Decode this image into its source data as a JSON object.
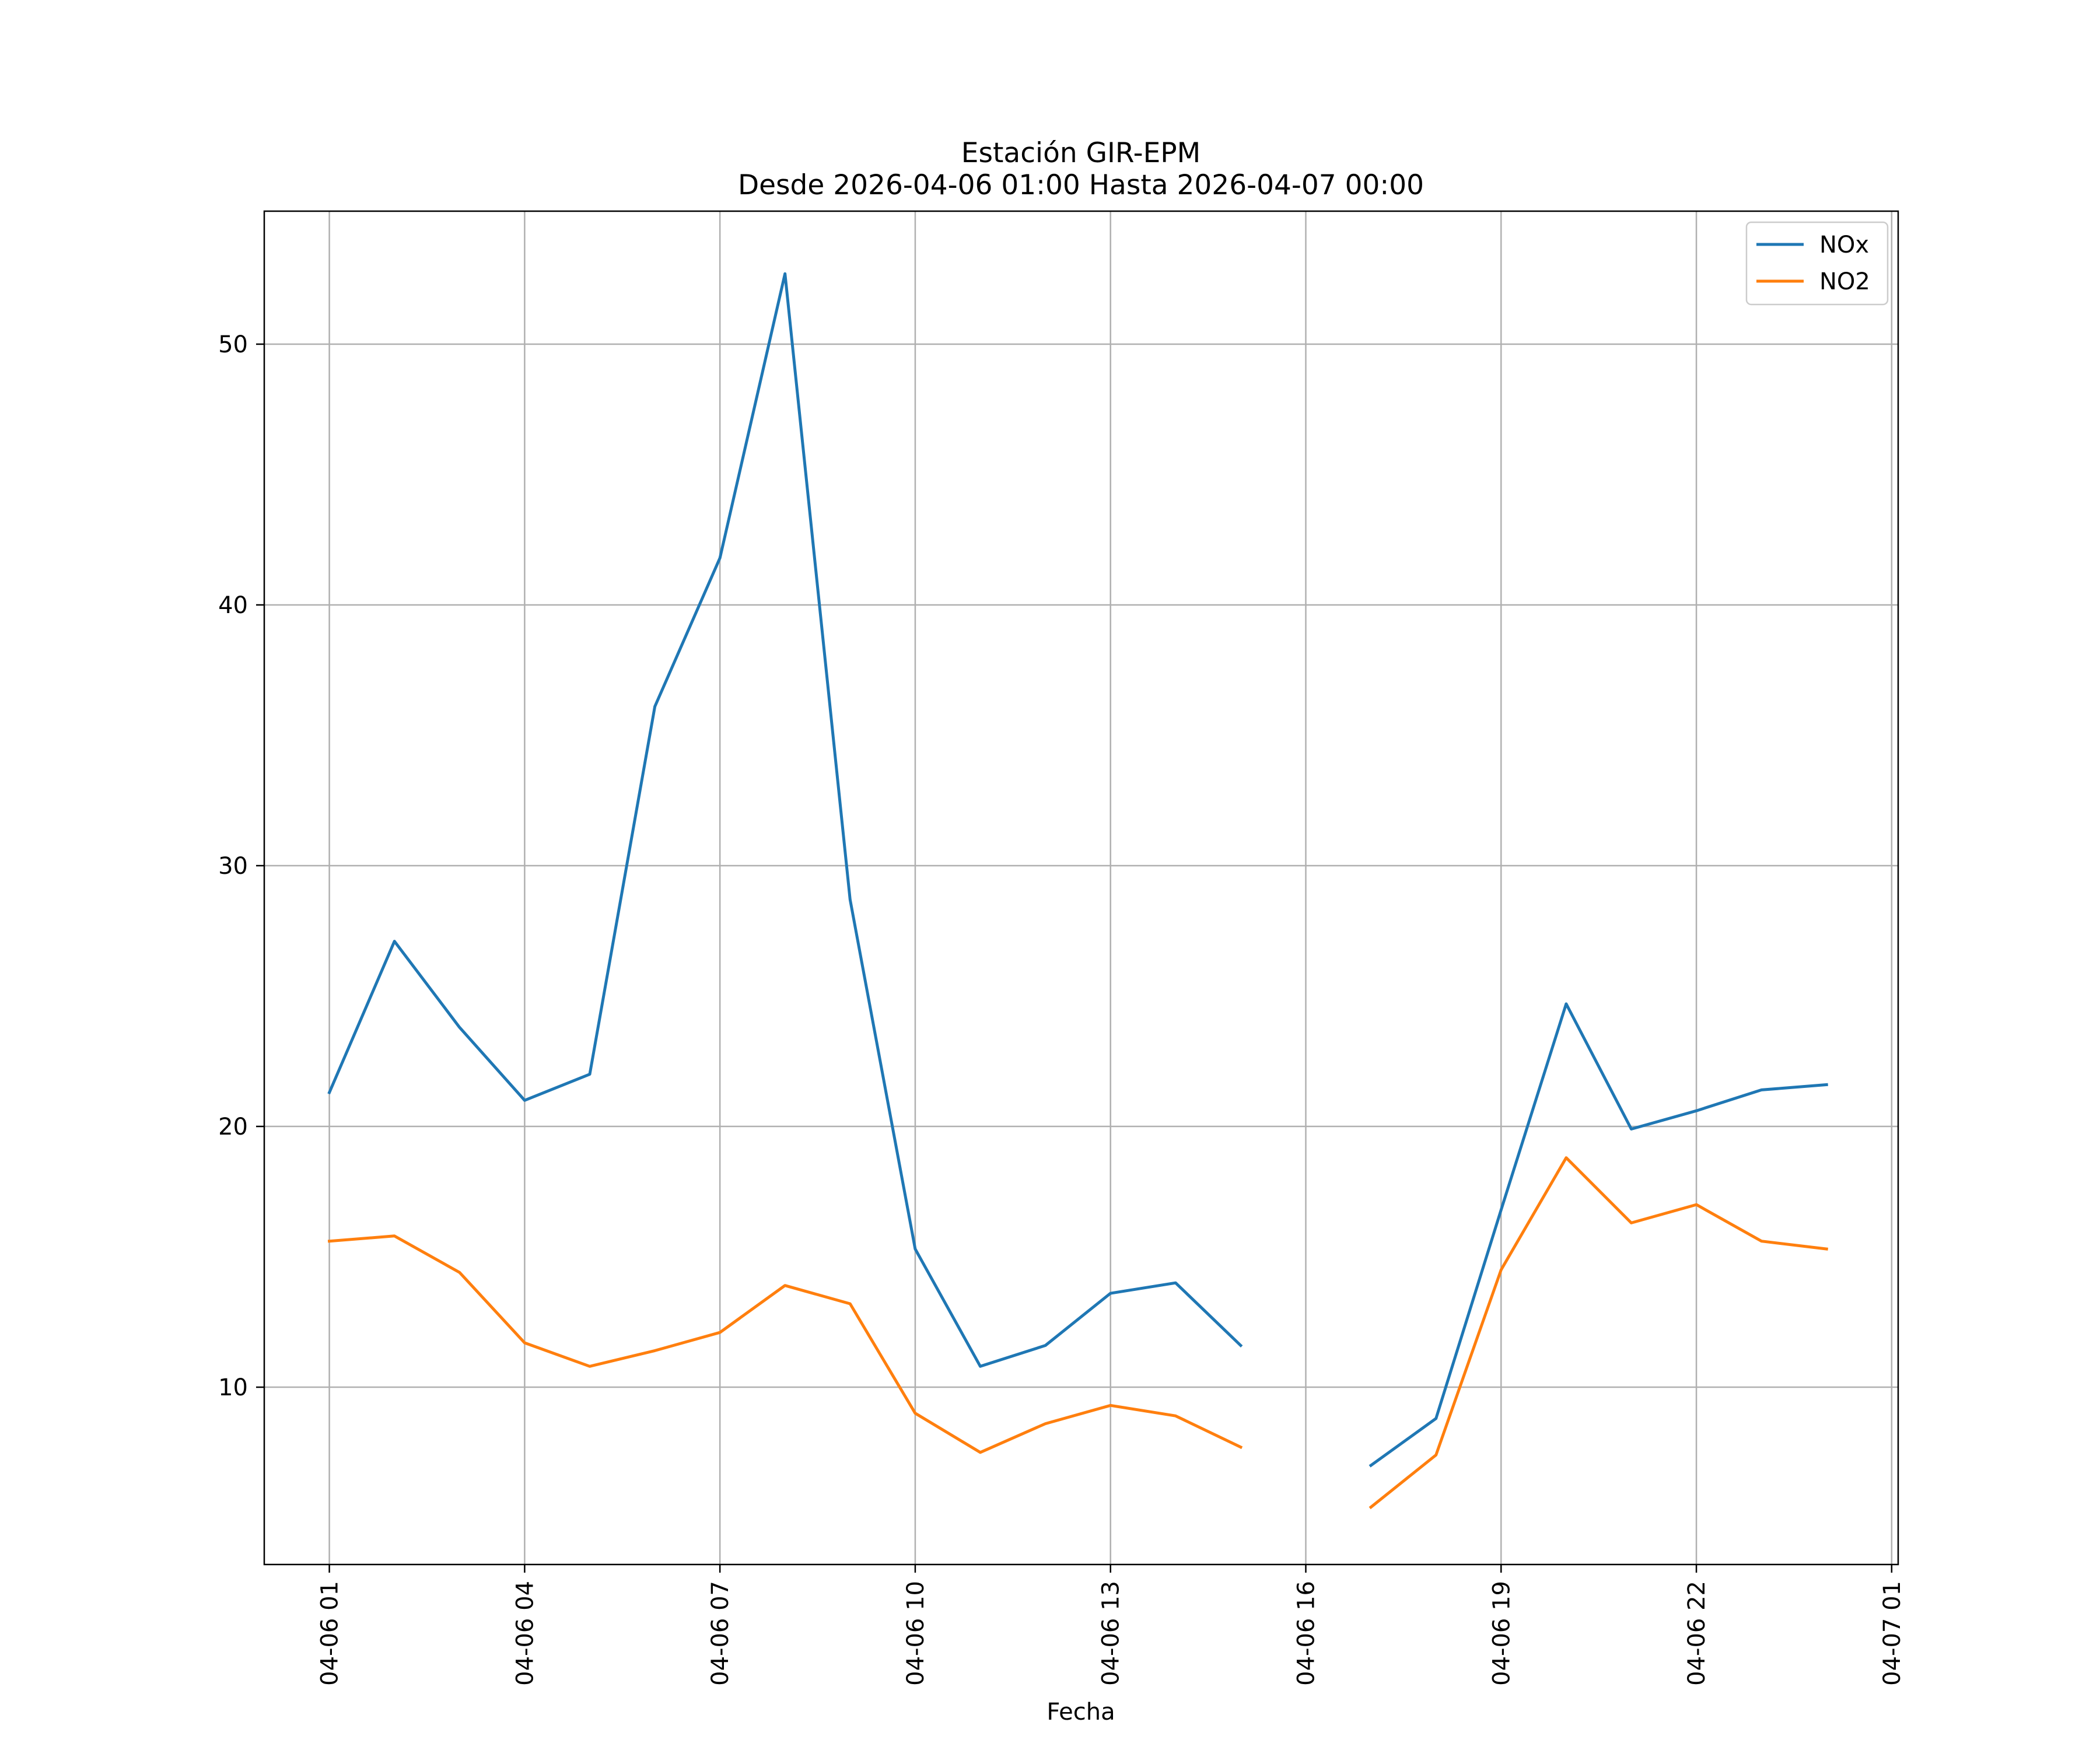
{
  "chart_data": {
    "type": "line",
    "title": "Estación GIR-EPM",
    "subtitle": "Desde 2026-04-06 01:00 Hasta 2026-04-07 00:00",
    "xlabel": "Fecha",
    "ylabel": "",
    "x": [
      "2026-04-06 01:00",
      "2026-04-06 02:00",
      "2026-04-06 03:00",
      "2026-04-06 04:00",
      "2026-04-06 05:00",
      "2026-04-06 06:00",
      "2026-04-06 07:00",
      "2026-04-06 08:00",
      "2026-04-06 09:00",
      "2026-04-06 10:00",
      "2026-04-06 11:00",
      "2026-04-06 12:00",
      "2026-04-06 13:00",
      "2026-04-06 14:00",
      "2026-04-06 15:00",
      "2026-04-06 16:00",
      "2026-04-06 17:00",
      "2026-04-06 18:00",
      "2026-04-06 19:00",
      "2026-04-06 20:00",
      "2026-04-06 21:00",
      "2026-04-06 22:00",
      "2026-04-06 23:00",
      "2026-04-07 00:00"
    ],
    "xlim": [
      "2026-04-06 00:00",
      "2026-04-07 01:06"
    ],
    "ylim": [
      3.2,
      55.1
    ],
    "xticks": [
      "04-06 01",
      "04-06 04",
      "04-06 07",
      "04-06 10",
      "04-06 13",
      "04-06 16",
      "04-06 19",
      "04-06 22",
      "04-07 01"
    ],
    "yticks": [
      10,
      20,
      30,
      40,
      50
    ],
    "grid": true,
    "legend_position": "top-right",
    "series": [
      {
        "name": "NOx",
        "color": "#1f77b4",
        "values": [
          21.3,
          27.1,
          23.8,
          21.0,
          22.0,
          36.1,
          41.8,
          52.7,
          28.7,
          15.3,
          10.8,
          11.6,
          13.6,
          14.0,
          11.6,
          null,
          7.0,
          8.8,
          16.8,
          24.7,
          19.9,
          20.6,
          21.4,
          21.6
        ]
      },
      {
        "name": "NO2",
        "color": "#ff7f0e",
        "values": [
          15.6,
          15.8,
          14.4,
          11.7,
          10.8,
          11.4,
          12.1,
          13.9,
          13.2,
          9.0,
          7.5,
          8.6,
          9.3,
          8.9,
          7.7,
          null,
          5.4,
          7.4,
          14.5,
          18.8,
          16.3,
          17.0,
          15.6,
          15.3
        ]
      }
    ]
  }
}
